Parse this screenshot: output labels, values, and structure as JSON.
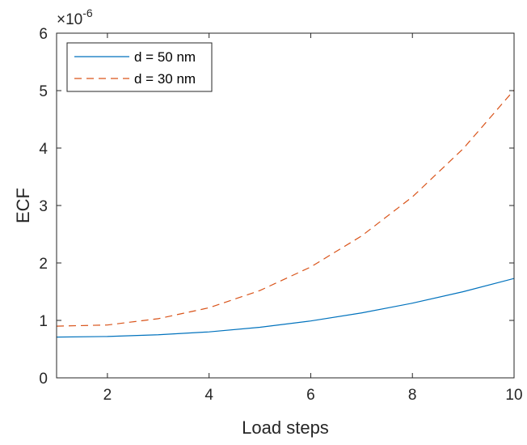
{
  "chart_data": {
    "type": "line",
    "xlabel": "Load steps",
    "ylabel": "ECF",
    "exponent_label": "×10",
    "exponent_power": "-6",
    "xlim": [
      1,
      10
    ],
    "ylim": [
      0,
      6
    ],
    "xticks": [
      2,
      4,
      6,
      8,
      10
    ],
    "yticks": [
      0,
      1,
      2,
      3,
      4,
      5,
      6
    ],
    "y_scale_factor": 1e-06,
    "grid": false,
    "legend_position": "top-left",
    "x": [
      1,
      2,
      3,
      4,
      5,
      6,
      7,
      8,
      9,
      10
    ],
    "series": [
      {
        "name": "d = 50 nm",
        "color": "#0072BD",
        "style": "solid",
        "values": [
          0.71,
          0.72,
          0.75,
          0.8,
          0.88,
          0.99,
          1.13,
          1.3,
          1.5,
          1.73
        ]
      },
      {
        "name": "d = 30 nm",
        "color": "#D95319",
        "style": "dashed",
        "values": [
          0.9,
          0.92,
          1.03,
          1.22,
          1.52,
          1.93,
          2.47,
          3.15,
          3.99,
          5.01
        ]
      }
    ]
  }
}
